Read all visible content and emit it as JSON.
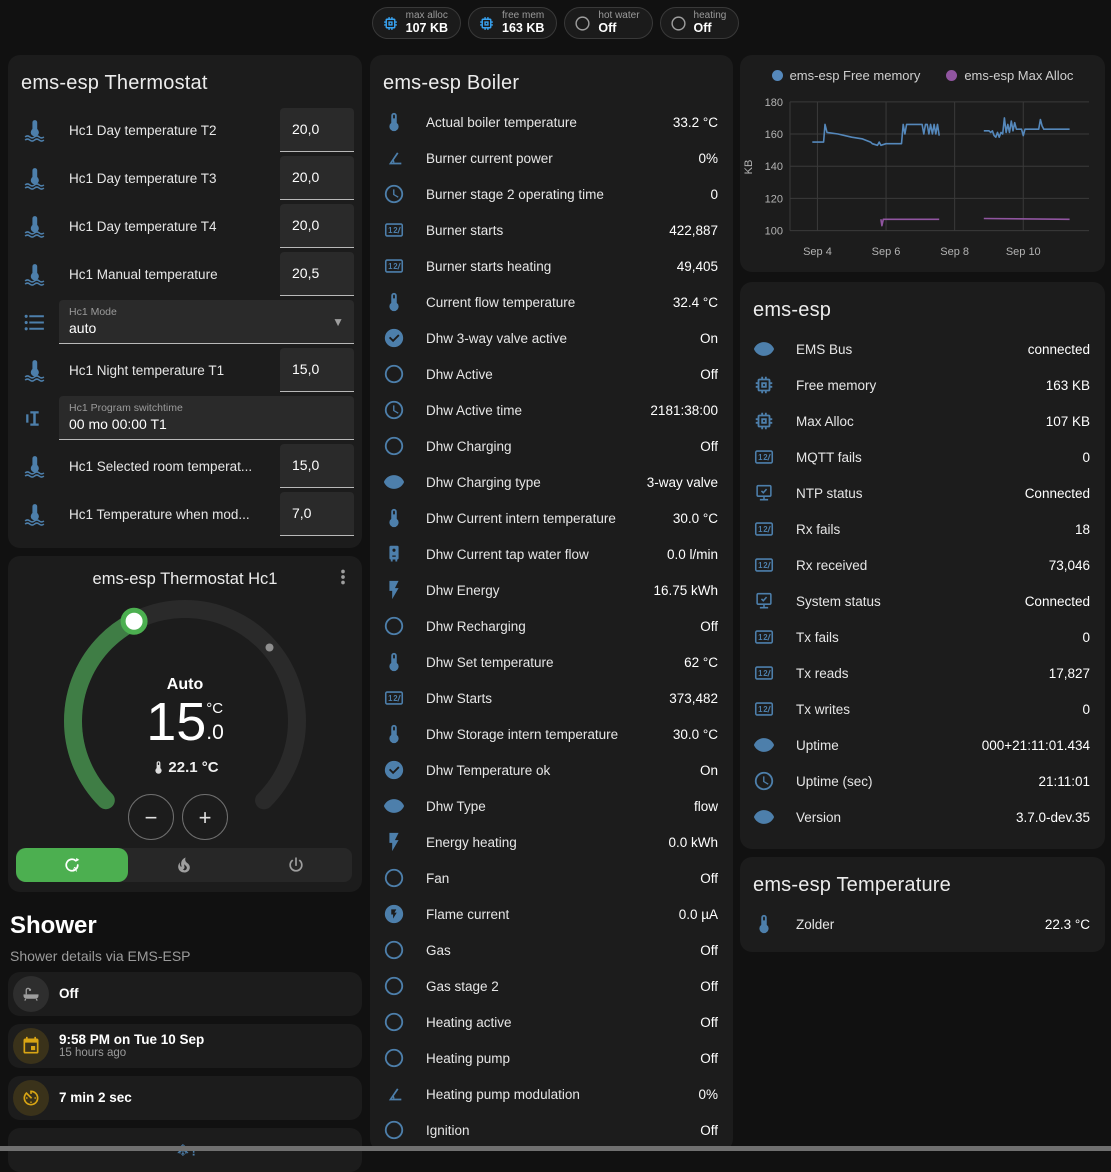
{
  "header_chips": [
    {
      "icon": "chip",
      "icon_color": "#38a3f1",
      "label": "max alloc",
      "value": "107 KB"
    },
    {
      "icon": "chip",
      "icon_color": "#38a3f1",
      "label": "free mem",
      "value": "163 KB"
    },
    {
      "icon": "circle-outline",
      "icon_color": "#9e9e9e",
      "label": "hot water",
      "value": "Off"
    },
    {
      "icon": "circle-outline",
      "icon_color": "#9e9e9e",
      "label": "heating",
      "value": "Off"
    }
  ],
  "thermostat_card": {
    "title": "ems-esp Thermostat",
    "rows": [
      {
        "type": "number",
        "icon": "thermometer-water",
        "label": "Hc1 Day temperature T2",
        "value": "20,0"
      },
      {
        "type": "number",
        "icon": "thermometer-water",
        "label": "Hc1 Day temperature T3",
        "value": "20,0"
      },
      {
        "type": "number",
        "icon": "thermometer-water",
        "label": "Hc1 Day temperature T4",
        "value": "20,0"
      },
      {
        "type": "number",
        "icon": "thermometer-water",
        "label": "Hc1 Manual temperature",
        "value": "20,5"
      },
      {
        "type": "select",
        "icon": "list",
        "label": "Hc1 Mode",
        "value": "auto"
      },
      {
        "type": "number",
        "icon": "thermometer-water",
        "label": "Hc1 Night temperature T1",
        "value": "15,0"
      },
      {
        "type": "text",
        "icon": "pipe-valve",
        "label": "Hc1 Program switchtime",
        "value": "00 mo 00:00 T1"
      },
      {
        "type": "number",
        "icon": "thermometer-water",
        "label": "Hc1 Selected room temperat...",
        "value": "15,0"
      },
      {
        "type": "number",
        "icon": "thermometer-water",
        "label": "Hc1 Temperature when mod...",
        "value": "7,0"
      }
    ]
  },
  "dial_card": {
    "title": "ems-esp Thermostat Hc1",
    "mode_label": "Auto",
    "target_int": "15",
    "target_unit": "°C",
    "target_frac": ".0",
    "current_temp": "22.1 °C",
    "minus_label": "−",
    "plus_label": "+",
    "accent_green": "#4caf50",
    "arc_green": "#3f7d45",
    "modes": [
      {
        "icon": "auto",
        "selected": true
      },
      {
        "icon": "fire",
        "selected": false
      },
      {
        "icon": "power",
        "selected": false
      }
    ]
  },
  "shower": {
    "title": "Shower",
    "subtitle": "Shower details via EMS-ESP",
    "tiles": [
      {
        "icon": "bathtub",
        "icon_color": "#9e9e9e",
        "icon_bg": "rgba(158,158,158,0.14)",
        "primary": "Off",
        "secondary": ""
      },
      {
        "icon": "calendar",
        "icon_color": "#d9a514",
        "icon_bg": "rgba(217,165,20,0.16)",
        "primary": "9:58 PM on Tue 10 Sep",
        "secondary": "15 hours ago"
      },
      {
        "icon": "timer",
        "icon_color": "#d9a514",
        "icon_bg": "rgba(217,165,20,0.16)",
        "primary": "7 min 2 sec",
        "secondary": ""
      },
      {
        "icon": "snowflake-alert",
        "icon_color": "#4d7fab",
        "icon_bg": "transparent",
        "primary": "",
        "secondary": "",
        "centered": true
      }
    ]
  },
  "boiler_card": {
    "title": "ems-esp Boiler",
    "rows": [
      {
        "icon": "thermometer",
        "label": "Actual boiler temperature",
        "value": "33.2 °C"
      },
      {
        "icon": "angle",
        "label": "Burner current power",
        "value": "0%"
      },
      {
        "icon": "clock",
        "label": "Burner stage 2 operating time",
        "value": "0"
      },
      {
        "icon": "counter",
        "label": "Burner starts",
        "value": "422,887"
      },
      {
        "icon": "counter",
        "label": "Burner starts heating",
        "value": "49,405"
      },
      {
        "icon": "thermometer",
        "label": "Current flow temperature",
        "value": "32.4 °C"
      },
      {
        "icon": "check-circle",
        "label": "Dhw 3-way valve active",
        "value": "On"
      },
      {
        "icon": "circle-outline",
        "label": "Dhw Active",
        "value": "Off"
      },
      {
        "icon": "clock",
        "label": "Dhw Active time",
        "value": "2181:38:00"
      },
      {
        "icon": "circle-outline",
        "label": "Dhw Charging",
        "value": "Off"
      },
      {
        "icon": "eye",
        "label": "Dhw Charging type",
        "value": "3-way valve"
      },
      {
        "icon": "thermometer",
        "label": "Dhw Current intern temperature",
        "value": "30.0 °C"
      },
      {
        "icon": "water-boiler",
        "label": "Dhw Current tap water flow",
        "value": "0.0 l/min"
      },
      {
        "icon": "flash",
        "label": "Dhw Energy",
        "value": "16.75 kWh"
      },
      {
        "icon": "circle-outline",
        "label": "Dhw Recharging",
        "value": "Off"
      },
      {
        "icon": "thermometer",
        "label": "Dhw Set temperature",
        "value": "62 °C"
      },
      {
        "icon": "counter",
        "label": "Dhw Starts",
        "value": "373,482"
      },
      {
        "icon": "thermometer",
        "label": "Dhw Storage intern temperature",
        "value": "30.0 °C"
      },
      {
        "icon": "check-circle",
        "label": "Dhw Temperature ok",
        "value": "On"
      },
      {
        "icon": "eye",
        "label": "Dhw Type",
        "value": "flow"
      },
      {
        "icon": "flash",
        "label": "Energy heating",
        "value": "0.0 kWh"
      },
      {
        "icon": "circle-outline",
        "label": "Fan",
        "value": "Off"
      },
      {
        "icon": "flash-circle",
        "label": "Flame current",
        "value": "0.0 µA"
      },
      {
        "icon": "circle-outline",
        "label": "Gas",
        "value": "Off"
      },
      {
        "icon": "circle-outline",
        "label": "Gas stage 2",
        "value": "Off"
      },
      {
        "icon": "circle-outline",
        "label": "Heating active",
        "value": "Off"
      },
      {
        "icon": "circle-outline",
        "label": "Heating pump",
        "value": "Off"
      },
      {
        "icon": "angle",
        "label": "Heating pump modulation",
        "value": "0%"
      },
      {
        "icon": "circle-outline",
        "label": "Ignition",
        "value": "Off"
      }
    ]
  },
  "chart_data": {
    "type": "line",
    "ylabel": "KB",
    "yticks": [
      100,
      120,
      140,
      160,
      180
    ],
    "ylim": [
      96,
      183
    ],
    "xlim": [
      3.2,
      11.8
    ],
    "xticks": [
      {
        "x": 4,
        "label": "Sep 4"
      },
      {
        "x": 6,
        "label": "Sep 6"
      },
      {
        "x": 8,
        "label": "Sep 8"
      },
      {
        "x": 10,
        "label": "Sep 10"
      }
    ],
    "grid": true,
    "legend_position": "top",
    "series": [
      {
        "name": "ems-esp Free memory",
        "color": "#5588bb",
        "segments": [
          [
            [
              3.85,
              155
            ],
            [
              4.18,
              155
            ],
            [
              4.22,
              166
            ],
            [
              4.28,
              161
            ],
            [
              4.6,
              160
            ],
            [
              5.0,
              158
            ],
            [
              5.3,
              157
            ],
            [
              5.55,
              155
            ],
            [
              5.6,
              154
            ],
            [
              5.75,
              153
            ],
            [
              5.8,
              155
            ],
            [
              5.85,
              153
            ],
            [
              6.0,
              154
            ],
            [
              6.45,
              154
            ],
            [
              6.5,
              166
            ],
            [
              6.55,
              160
            ],
            [
              6.6,
              166
            ],
            [
              7.05,
              166
            ],
            [
              7.1,
              160
            ],
            [
              7.15,
              166
            ],
            [
              7.2,
              166
            ],
            [
              7.25,
              160
            ],
            [
              7.3,
              166
            ],
            [
              7.35,
              160
            ],
            [
              7.4,
              166
            ],
            [
              7.45,
              160
            ],
            [
              7.5,
              166
            ],
            [
              7.55,
              159
            ]
          ],
          [
            [
              8.85,
              162
            ],
            [
              9.0,
              162
            ],
            [
              9.05,
              161
            ],
            [
              9.1,
              162
            ],
            [
              9.15,
              159
            ],
            [
              9.2,
              158
            ],
            [
              9.25,
              161
            ],
            [
              9.3,
              158
            ],
            [
              9.35,
              161
            ],
            [
              9.4,
              160
            ],
            [
              9.45,
              170
            ],
            [
              9.5,
              161
            ],
            [
              9.55,
              166
            ],
            [
              9.6,
              161
            ],
            [
              9.65,
              168
            ],
            [
              9.7,
              162
            ],
            [
              9.75,
              167
            ],
            [
              9.8,
              163
            ],
            [
              9.95,
              163
            ],
            [
              10.0,
              159
            ],
            [
              10.05,
              163
            ],
            [
              10.45,
              163
            ],
            [
              10.5,
              169
            ],
            [
              10.55,
              165
            ],
            [
              10.6,
              163
            ],
            [
              11.0,
              163
            ],
            [
              11.35,
              163
            ]
          ]
        ]
      },
      {
        "name": "ems-esp Max Alloc",
        "color": "#9055a0",
        "segments": [
          [
            [
              5.85,
              107
            ],
            [
              5.88,
              103
            ],
            [
              5.92,
              107
            ],
            [
              7.55,
              107
            ]
          ],
          [
            [
              8.85,
              107.5
            ],
            [
              11.35,
              107
            ]
          ]
        ]
      }
    ]
  },
  "emsesp_card": {
    "title": "ems-esp",
    "rows": [
      {
        "icon": "eye",
        "label": "EMS Bus",
        "value": "connected"
      },
      {
        "icon": "chip",
        "label": "Free memory",
        "value": "163 KB"
      },
      {
        "icon": "chip",
        "label": "Max Alloc",
        "value": "107 KB"
      },
      {
        "icon": "counter",
        "label": "MQTT fails",
        "value": "0"
      },
      {
        "icon": "monitor-check",
        "label": "NTP status",
        "value": "Connected"
      },
      {
        "icon": "counter",
        "label": "Rx fails",
        "value": "18"
      },
      {
        "icon": "counter",
        "label": "Rx received",
        "value": "73,046"
      },
      {
        "icon": "monitor-check",
        "label": "System status",
        "value": "Connected"
      },
      {
        "icon": "counter",
        "label": "Tx fails",
        "value": "0"
      },
      {
        "icon": "counter",
        "label": "Tx reads",
        "value": "17,827"
      },
      {
        "icon": "counter",
        "label": "Tx writes",
        "value": "0"
      },
      {
        "icon": "eye",
        "label": "Uptime",
        "value": "000+21:11:01.434"
      },
      {
        "icon": "clock",
        "label": "Uptime (sec)",
        "value": "21:11:01"
      },
      {
        "icon": "eye",
        "label": "Version",
        "value": "3.7.0-dev.35"
      }
    ]
  },
  "temperature_card": {
    "title": "ems-esp Temperature",
    "rows": [
      {
        "icon": "thermometer",
        "label": "Zolder",
        "value": "22.3 °C"
      }
    ]
  },
  "colors": {
    "row_icon_blue": "#4d7fab",
    "chip_icon_blue": "#38a3f1",
    "amber": "#d9a514",
    "green": "#4caf50",
    "card_bg": "#1c1c1c",
    "page_bg": "#111111"
  }
}
